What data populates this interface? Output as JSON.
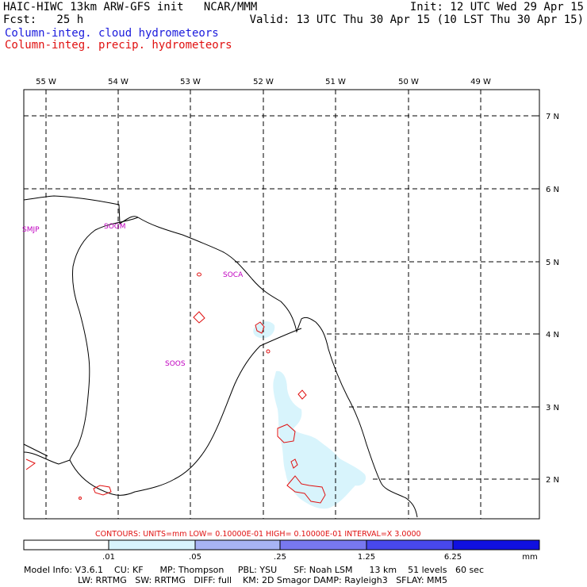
{
  "header": {
    "left_line1": "HAIC-HIWC 13km ARW-GFS init   NCAR/MMM",
    "left_line2": "Fcst:   25 h",
    "right_line1": "Init: 12 UTC Wed 29 Apr 15",
    "right_line2": "Valid: 13 UTC Thu 30 Apr 15 (10 LST Thu 30 Apr 15)"
  },
  "legend": {
    "cloud_label": "Column-integ. cloud hydrometeors",
    "precip_label": "Column-integ. precip. hydrometeors",
    "cloud_color": "#1a1adc",
    "precip_color": "#e01010"
  },
  "map": {
    "lon_labels": [
      "55 W",
      "54 W",
      "53 W",
      "52 W",
      "51 W",
      "50 W",
      "49 W"
    ],
    "lat_labels": [
      "7 N",
      "6 N",
      "5 N",
      "4 N",
      "3 N",
      "2 N"
    ],
    "stations": [
      {
        "id": "SMJP"
      },
      {
        "id": "SOGM"
      },
      {
        "id": "SOCA"
      },
      {
        "id": "SOOS"
      }
    ],
    "station_color": "#c000c0"
  },
  "contours_note": "CONTOURS:  UNITS=mm  LOW= 0.10000E-01  HIGH= 0.10000E-01  INTERVAL=X  3.0000",
  "colorbar": {
    "ticks": [
      ".01",
      ".05",
      ".25",
      "1.25",
      "6.25"
    ],
    "units": "mm",
    "colors": [
      "#ffffff",
      "#d8f4fc",
      "#a8b4f4",
      "#7878f0",
      "#4848ec",
      "#1010e0"
    ]
  },
  "footer": {
    "line1": "Model Info: V3.6.1    CU: KF      MP: Thompson     PBL: YSU      SF: Noah LSM      13 km    51 levels   60 sec",
    "line2": "LW: RRTMG   SW: RRTMG   DIFF: full    KM: 2D Smagor DAMP: Rayleigh3   SFLAY: MM5"
  }
}
